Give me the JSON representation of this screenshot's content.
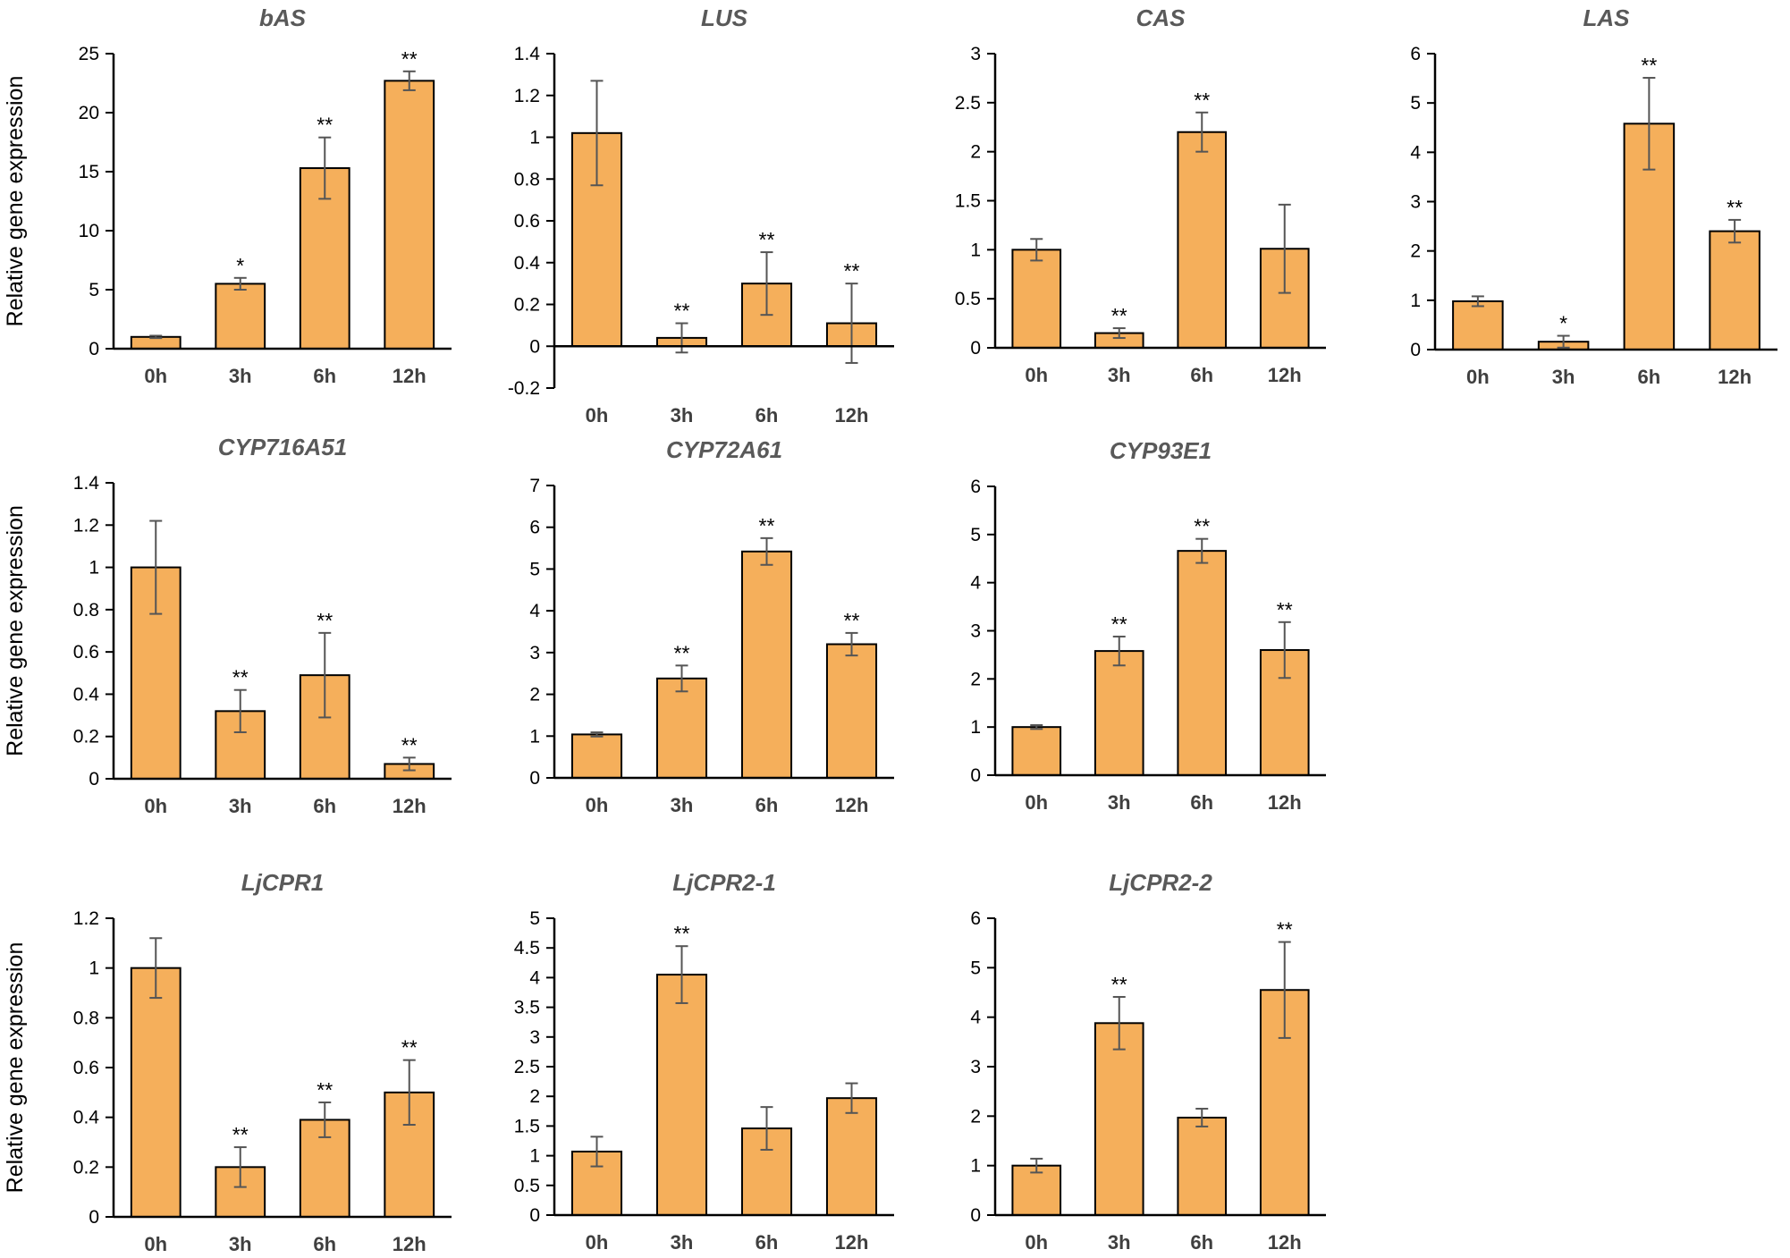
{
  "colors": {
    "bar_fill": "#F5AF5B",
    "bar_stroke": "#000000",
    "axis": "#000000",
    "error_bar": "#555555",
    "title": "#595959"
  },
  "ylabel": "Relative gene expression",
  "chart_data": [
    {
      "type": "bar",
      "title": "bAS",
      "xlabel": "",
      "ylabel": "Relative gene expression",
      "categories": [
        "0h",
        "3h",
        "6h",
        "12h"
      ],
      "values": [
        1,
        5.5,
        15.3,
        22.7
      ],
      "errors": [
        0.1,
        0.5,
        2.6,
        0.8
      ],
      "significance": [
        "",
        "*",
        "**",
        "**"
      ],
      "ylim": [
        0,
        25
      ],
      "yticks": [
        0,
        5,
        10,
        15,
        20,
        25
      ],
      "ytick_labels": [
        "0",
        "5",
        "10",
        "15",
        "20",
        "25"
      ]
    },
    {
      "type": "bar",
      "title": "LUS",
      "xlabel": "",
      "ylabel": "",
      "categories": [
        "0h",
        "3h",
        "6h",
        "12h"
      ],
      "values": [
        1.02,
        0.04,
        0.3,
        0.11
      ],
      "errors": [
        0.25,
        0.07,
        0.15,
        0.19
      ],
      "significance": [
        "",
        "**",
        "**",
        "**"
      ],
      "ylim": [
        -0.2,
        1.4
      ],
      "yticks": [
        -0.2,
        0,
        0.2,
        0.4,
        0.6,
        0.8,
        1,
        1.2,
        1.4
      ],
      "ytick_labels": [
        "-0.2",
        "0",
        "0.2",
        "0.4",
        "0.6",
        "0.8",
        "1",
        "1.2",
        "1.4"
      ]
    },
    {
      "type": "bar",
      "title": "CAS",
      "xlabel": "",
      "ylabel": "",
      "categories": [
        "0h",
        "3h",
        "6h",
        "12h"
      ],
      "values": [
        1,
        0.15,
        2.2,
        1.01
      ],
      "errors": [
        0.11,
        0.05,
        0.2,
        0.45
      ],
      "significance": [
        "",
        "**",
        "**",
        ""
      ],
      "ylim": [
        0,
        3
      ],
      "yticks": [
        0,
        0.5,
        1,
        1.5,
        2,
        2.5,
        3
      ],
      "ytick_labels": [
        "0",
        "0.5",
        "1",
        "1.5",
        "2",
        "2.5",
        "3"
      ]
    },
    {
      "type": "bar",
      "title": "LAS",
      "xlabel": "",
      "ylabel": "",
      "categories": [
        "0h",
        "3h",
        "6h",
        "12h"
      ],
      "values": [
        0.98,
        0.16,
        4.58,
        2.4
      ],
      "errors": [
        0.1,
        0.12,
        0.93,
        0.23
      ],
      "significance": [
        "",
        "*",
        "**",
        "**"
      ],
      "ylim": [
        0,
        6
      ],
      "yticks": [
        0,
        1,
        2,
        3,
        4,
        5,
        6
      ],
      "ytick_labels": [
        "0",
        "1",
        "2",
        "3",
        "4",
        "5",
        "6"
      ]
    },
    {
      "type": "bar",
      "title": "CYP716A51",
      "xlabel": "",
      "ylabel": "Relative gene expression",
      "categories": [
        "0h",
        "3h",
        "6h",
        "12h"
      ],
      "values": [
        1,
        0.32,
        0.49,
        0.07
      ],
      "errors": [
        0.22,
        0.1,
        0.2,
        0.03
      ],
      "significance": [
        "",
        "**",
        "**",
        "**"
      ],
      "ylim": [
        0,
        1.4
      ],
      "yticks": [
        0,
        0.2,
        0.4,
        0.6,
        0.8,
        1,
        1.2,
        1.4
      ],
      "ytick_labels": [
        "0",
        "0.2",
        "0.4",
        "0.6",
        "0.8",
        "1",
        "1.2",
        "1.4"
      ]
    },
    {
      "type": "bar",
      "title": "CYP72A61",
      "xlabel": "",
      "ylabel": "",
      "categories": [
        "0h",
        "3h",
        "6h",
        "12h"
      ],
      "values": [
        1.04,
        2.38,
        5.42,
        3.2
      ],
      "errors": [
        0.05,
        0.31,
        0.32,
        0.27
      ],
      "significance": [
        "",
        "**",
        "**",
        "**"
      ],
      "ylim": [
        0,
        7
      ],
      "yticks": [
        0,
        1,
        2,
        3,
        4,
        5,
        6,
        7
      ],
      "ytick_labels": [
        "0",
        "1",
        "2",
        "3",
        "4",
        "5",
        "6",
        "7"
      ]
    },
    {
      "type": "bar",
      "title": "CYP93E1",
      "xlabel": "",
      "ylabel": "",
      "categories": [
        "0h",
        "3h",
        "6h",
        "12h"
      ],
      "values": [
        1,
        2.58,
        4.66,
        2.6
      ],
      "errors": [
        0.04,
        0.3,
        0.25,
        0.58
      ],
      "significance": [
        "",
        "**",
        "**",
        "**"
      ],
      "ylim": [
        0,
        6
      ],
      "yticks": [
        0,
        1,
        2,
        3,
        4,
        5,
        6
      ],
      "ytick_labels": [
        "0",
        "1",
        "2",
        "3",
        "4",
        "5",
        "6"
      ]
    },
    {
      "type": "bar",
      "title": "LjCPR1",
      "xlabel": "",
      "ylabel": "Relative gene expression",
      "categories": [
        "0h",
        "3h",
        "6h",
        "12h"
      ],
      "values": [
        1,
        0.2,
        0.39,
        0.5
      ],
      "errors": [
        0.12,
        0.08,
        0.07,
        0.13
      ],
      "significance": [
        "",
        "**",
        "**",
        "**"
      ],
      "ylim": [
        0,
        1.2
      ],
      "yticks": [
        0,
        0.2,
        0.4,
        0.6,
        0.8,
        1,
        1.2
      ],
      "ytick_labels": [
        "0",
        "0.2",
        "0.4",
        "0.6",
        "0.8",
        "1",
        "1.2"
      ]
    },
    {
      "type": "bar",
      "title": "LjCPR2-1",
      "xlabel": "",
      "ylabel": "",
      "categories": [
        "0h",
        "3h",
        "6h",
        "12h"
      ],
      "values": [
        1.07,
        4.05,
        1.46,
        1.97
      ],
      "errors": [
        0.25,
        0.48,
        0.36,
        0.25
      ],
      "significance": [
        "",
        "**",
        "",
        ""
      ],
      "ylim": [
        0,
        5
      ],
      "yticks": [
        0,
        0.5,
        1,
        1.5,
        2,
        2.5,
        3,
        3.5,
        4,
        4.5,
        5
      ],
      "ytick_labels": [
        "0",
        "0.5",
        "1",
        "1.5",
        "2",
        "2.5",
        "3",
        "3.5",
        "4",
        "4.5",
        "5"
      ]
    },
    {
      "type": "bar",
      "title": "LjCPR2-2",
      "xlabel": "",
      "ylabel": "",
      "categories": [
        "0h",
        "3h",
        "6h",
        "12h"
      ],
      "values": [
        1,
        3.88,
        1.97,
        4.55
      ],
      "errors": [
        0.14,
        0.53,
        0.18,
        0.97
      ],
      "significance": [
        "",
        "**",
        "",
        "**"
      ],
      "ylim": [
        0,
        6
      ],
      "yticks": [
        0,
        1,
        2,
        3,
        4,
        5,
        6
      ],
      "ytick_labels": [
        "0",
        "1",
        "2",
        "3",
        "4",
        "5",
        "6"
      ]
    }
  ]
}
